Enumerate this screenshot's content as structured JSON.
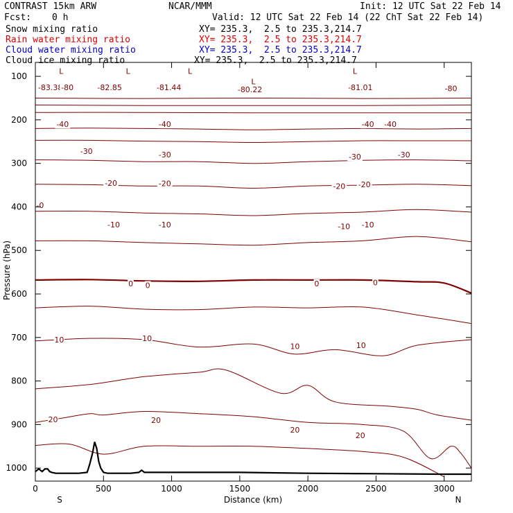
{
  "header": {
    "model": "CONTRAST 15km ARW",
    "center": "NCAR/MMM",
    "init": "Init: 12 UTC Sat 22 Feb 14",
    "fcst_label": "Fcst:",
    "fcst_value": "0 h",
    "valid": "Valid: 12 UTC Sat 22 Feb 14 (22 ChT Sat 22 Feb 14)"
  },
  "fields": [
    {
      "name": "Snow mixing ratio",
      "xy": "XY= 235.3,  2.5 to 235.3,214.7",
      "color": "#000000"
    },
    {
      "name": "Rain water mixing ratio",
      "xy": "XY= 235.3,  2.5 to 235.3,214.7",
      "color": "#e00000"
    },
    {
      "name": "Cloud water mixing ratio",
      "xy": "XY= 235.3,  2.5 to 235.3,214.7",
      "color": "#0000c8"
    },
    {
      "name": "Cloud ice mixing ratio",
      "xy": "XY= 235.3,  2.5 to 235.3,214.7",
      "color": "#000000"
    }
  ],
  "chart_data": {
    "type": "line",
    "xlabel": "Distance (km)",
    "ylabel": "Pressure (hPa)",
    "xlim": [
      0,
      3200
    ],
    "ylim": [
      1030,
      68
    ],
    "x_ticks": [
      0,
      500,
      1000,
      1500,
      2000,
      2500,
      3000
    ],
    "y_ticks": [
      100,
      200,
      300,
      400,
      500,
      600,
      700,
      800,
      900,
      1000
    ],
    "left_end_label": "S",
    "right_end_label": "N",
    "contour_color": "#800000",
    "terrain_color": "#000000",
    "series": [
      {
        "x": [
          0,
          800,
          1600,
          2400,
          3200
        ],
        "y": [
          150,
          151,
          150,
          151,
          150
        ]
      },
      {
        "x": [
          0,
          800,
          1600,
          2400,
          3200
        ],
        "y": [
          166,
          167,
          167,
          167,
          166
        ]
      },
      {
        "x": [
          0,
          800,
          1600,
          2400,
          3200
        ],
        "y": [
          183,
          183,
          184,
          184,
          184
        ]
      },
      {
        "x": [
          0,
          400,
          800,
          1200,
          1600,
          2000,
          2400,
          2800,
          3200
        ],
        "y": [
          220,
          219,
          220,
          221,
          223,
          221,
          220,
          221,
          220
        ]
      },
      {
        "x": [
          0,
          400,
          800,
          1200,
          1600,
          2000,
          2400,
          2800,
          3200
        ],
        "y": [
          247,
          247,
          249,
          250,
          252,
          250,
          248,
          248,
          248
        ]
      },
      {
        "x": [
          0,
          400,
          800,
          1200,
          1600,
          2000,
          2400,
          2800,
          3200
        ],
        "y": [
          292,
          293,
          296,
          296,
          300,
          296,
          293,
          292,
          294
        ]
      },
      {
        "x": [
          0,
          400,
          800,
          1200,
          1600,
          2000,
          2400,
          2800,
          3200
        ],
        "y": [
          348,
          349,
          352,
          352,
          357,
          352,
          350,
          348,
          351
        ]
      },
      {
        "x": [
          0,
          400,
          800,
          1200,
          1600,
          2000,
          2400,
          2800,
          3200
        ],
        "y": [
          410,
          410,
          414,
          416,
          420,
          415,
          412,
          406,
          412
        ]
      },
      {
        "x": [
          0,
          400,
          800,
          1200,
          1600,
          2000,
          2400,
          2800,
          3200
        ],
        "y": [
          478,
          478,
          482,
          485,
          488,
          482,
          478,
          468,
          480
        ]
      },
      {
        "x": [
          0,
          400,
          800,
          1200,
          1600,
          2000,
          2400,
          2800,
          3000,
          3200
        ],
        "y": [
          568,
          567,
          570,
          571,
          568,
          568,
          568,
          572,
          575,
          598
        ]
      },
      {
        "x": [
          0,
          400,
          800,
          1200,
          1600,
          2000,
          2400,
          2800,
          3200
        ],
        "y": [
          632,
          628,
          635,
          636,
          630,
          632,
          630,
          648,
          668
        ]
      },
      {
        "x": [
          0,
          400,
          800,
          1200,
          1600,
          1900,
          2200,
          2550,
          2800,
          3200
        ],
        "y": [
          708,
          702,
          705,
          722,
          715,
          738,
          728,
          742,
          718,
          705
        ]
      },
      {
        "x": [
          0,
          400,
          800,
          1200,
          1400,
          1800,
          2000,
          2200,
          2600,
          2800,
          2950,
          3200
        ],
        "y": [
          818,
          808,
          790,
          780,
          775,
          828,
          810,
          848,
          858,
          865,
          878,
          890
        ]
      },
      {
        "x": [
          0,
          200,
          400,
          500,
          800,
          1200,
          1600,
          2000,
          2400,
          2700,
          2900,
          3050,
          3120,
          3200
        ],
        "y": [
          895,
          885,
          875,
          878,
          870,
          875,
          882,
          895,
          900,
          915,
          978,
          950,
          965,
          1000
        ]
      },
      {
        "x": [
          0,
          250,
          500,
          800,
          1200,
          1600,
          2000,
          2400,
          2700,
          3000
        ],
        "y": [
          948,
          945,
          968,
          950,
          950,
          950,
          955,
          962,
          975,
          1020
        ]
      }
    ],
    "terrain": {
      "x": [
        0,
        25,
        50,
        70,
        90,
        105,
        120,
        150,
        250,
        320,
        380,
        400,
        420,
        435,
        450,
        465,
        480,
        500,
        530,
        560,
        600,
        700,
        760,
        780,
        800,
        820,
        900,
        1200,
        1500,
        2000,
        2500,
        3000,
        3200
      ],
      "y": [
        1008,
        1002,
        1008,
        1002,
        1002,
        1008,
        1010,
        1012,
        1012,
        1012,
        1010,
        990,
        965,
        940,
        955,
        985,
        1000,
        1010,
        1012,
        1012,
        1012,
        1012,
        1010,
        1005,
        1010,
        1010,
        1010,
        1010,
        1010,
        1012,
        1013,
        1014,
        1014
      ]
    },
    "contour_labels": [
      {
        "x": 35,
        "y": 396,
        "text": "-0"
      },
      {
        "x": 110,
        "y": 125,
        "text": "-83.38"
      },
      {
        "x": 235,
        "y": 125,
        "text": "-80"
      },
      {
        "x": 545,
        "y": 125,
        "text": "-82.85"
      },
      {
        "x": 980,
        "y": 125,
        "text": "-81.44"
      },
      {
        "x": 1575,
        "y": 130,
        "text": "-80.22"
      },
      {
        "x": 2385,
        "y": 125,
        "text": "-81.01"
      },
      {
        "x": 3050,
        "y": 128,
        "text": "-80"
      },
      {
        "x": 200,
        "y": 210,
        "text": "-40"
      },
      {
        "x": 950,
        "y": 210,
        "text": "-40"
      },
      {
        "x": 2605,
        "y": 210,
        "text": "-40"
      },
      {
        "x": 2440,
        "y": 210,
        "text": "-40"
      },
      {
        "x": 375,
        "y": 272,
        "text": "-30"
      },
      {
        "x": 950,
        "y": 280,
        "text": "-30"
      },
      {
        "x": 2345,
        "y": 285,
        "text": "-30"
      },
      {
        "x": 2705,
        "y": 280,
        "text": "-30"
      },
      {
        "x": 555,
        "y": 345,
        "text": "-20"
      },
      {
        "x": 950,
        "y": 346,
        "text": "-20"
      },
      {
        "x": 2230,
        "y": 352,
        "text": "-20"
      },
      {
        "x": 2415,
        "y": 348,
        "text": "-20"
      },
      {
        "x": 575,
        "y": 441,
        "text": "-10"
      },
      {
        "x": 950,
        "y": 441,
        "text": "-10"
      },
      {
        "x": 2265,
        "y": 445,
        "text": "-10"
      },
      {
        "x": 2440,
        "y": 441,
        "text": "-10"
      },
      {
        "x": 700,
        "y": 576,
        "text": "0"
      },
      {
        "x": 825,
        "y": 580,
        "text": "0"
      },
      {
        "x": 2065,
        "y": 576,
        "text": "0"
      },
      {
        "x": 2495,
        "y": 574,
        "text": "0"
      },
      {
        "x": 175,
        "y": 705,
        "text": "10"
      },
      {
        "x": 820,
        "y": 702,
        "text": "10"
      },
      {
        "x": 1905,
        "y": 720,
        "text": "10"
      },
      {
        "x": 2390,
        "y": 718,
        "text": "10"
      },
      {
        "x": 130,
        "y": 888,
        "text": "20"
      },
      {
        "x": 885,
        "y": 890,
        "text": "20"
      },
      {
        "x": 1905,
        "y": 912,
        "text": "20"
      },
      {
        "x": 2385,
        "y": 925,
        "text": "20"
      }
    ],
    "low_markers": [
      {
        "x": 190,
        "y": 88,
        "text": "L"
      },
      {
        "x": 680,
        "y": 88,
        "text": "L"
      },
      {
        "x": 1135,
        "y": 88,
        "text": "L"
      },
      {
        "x": 1600,
        "y": 112,
        "text": "L"
      },
      {
        "x": 2345,
        "y": 88,
        "text": "L"
      }
    ]
  }
}
